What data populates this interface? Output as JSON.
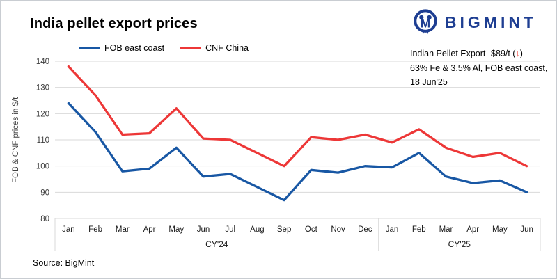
{
  "title": "India pellet export prices",
  "logo": {
    "text": "BIGMINT",
    "color": "#1E3E92"
  },
  "annotation": {
    "line1": "Indian Pellet Export- $89/t (",
    "arrow": "↓",
    "line1_close": ")",
    "line2": "63% Fe & 3.5% Al, FOB east coast,",
    "line3": "18 Jun'25"
  },
  "source": "Source: BigMint",
  "colors": {
    "fob_blue": "#1857A4",
    "cnf_red": "#ED3737",
    "arrow_red": "#ED2E24",
    "grid": "#D9D9D9",
    "axis_text": "#404040",
    "logo_navy": "#1E3E92"
  },
  "chart_data": {
    "type": "line",
    "title": "India pellet export prices",
    "ylabel": "FOB & CNF prices in $/t",
    "ylim": [
      80,
      140
    ],
    "ytick_step": 10,
    "grid": true,
    "legend_position": "top",
    "categories": [
      "Jan",
      "Feb",
      "Mar",
      "Apr",
      "May",
      "Jun",
      "Jul",
      "Aug",
      "Sep",
      "Oct",
      "Nov",
      "Dec",
      "Jan",
      "Feb",
      "Mar",
      "Apr",
      "May",
      "Jun"
    ],
    "groups": [
      {
        "label": "CY'24",
        "span": 12
      },
      {
        "label": "CY'25",
        "span": 6
      }
    ],
    "series": [
      {
        "name": "FOB east coast",
        "color": "#1857A4",
        "values": [
          124,
          113,
          98,
          99,
          107,
          96,
          97,
          92,
          87,
          98.5,
          97.5,
          100,
          99.5,
          105,
          96,
          93.5,
          94.5,
          90
        ]
      },
      {
        "name": "CNF China",
        "color": "#ED3737",
        "values": [
          138,
          127,
          112,
          112.5,
          122,
          110.5,
          110,
          105,
          100,
          111,
          110,
          112,
          109,
          114,
          107,
          103.5,
          105,
          100
        ]
      }
    ]
  }
}
